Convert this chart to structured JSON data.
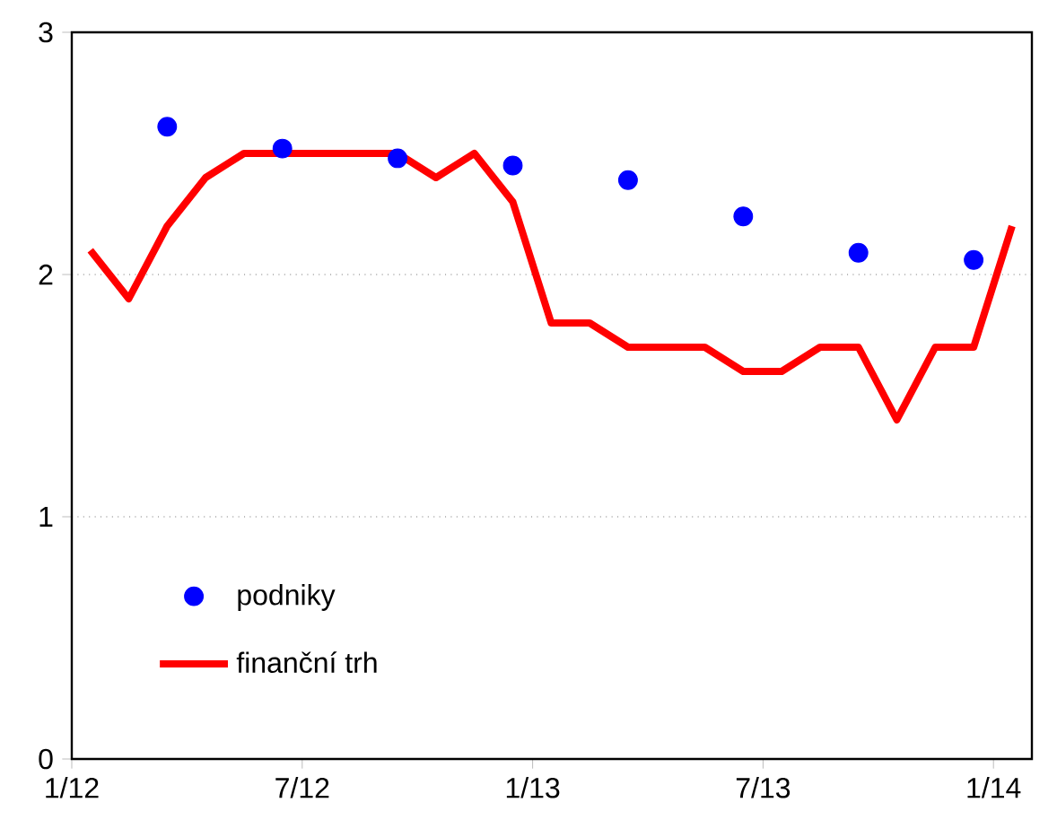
{
  "chart_data": {
    "type": "line",
    "xlim": [
      "2012-01",
      "2014-02"
    ],
    "ylim": [
      0,
      3
    ],
    "xticks": [
      {
        "value": "2012-01",
        "label": "1/12"
      },
      {
        "value": "2012-07",
        "label": "7/12"
      },
      {
        "value": "2013-01",
        "label": "1/13"
      },
      {
        "value": "2013-07",
        "label": "7/13"
      },
      {
        "value": "2014-01",
        "label": "1/14"
      }
    ],
    "yticks": [
      0,
      1,
      2,
      3
    ],
    "grid": "y",
    "legend": "bottom left",
    "series": [
      {
        "name": "podniky",
        "type": "scatter",
        "marker": "circle",
        "color": "#0000ff",
        "x": [
          "2012-03-16",
          "2012-06-16",
          "2012-09-16",
          "2012-12-16",
          "2013-03-16",
          "2013-06-16",
          "2013-09-16",
          "2013-12-16"
        ],
        "values": [
          2.61,
          2.52,
          2.48,
          2.45,
          2.39,
          2.24,
          2.09,
          2.06
        ]
      },
      {
        "name": "finanční trh",
        "marker": "none",
        "line_style": "solid",
        "color": "#ff0000",
        "x": [
          "2012-01-16",
          "2012-02-16",
          "2012-03-16",
          "2012-04-16",
          "2012-05-16",
          "2012-06-16",
          "2012-07-16",
          "2012-08-16",
          "2012-09-16",
          "2012-10-16",
          "2012-11-16",
          "2012-12-16",
          "2013-01-16",
          "2013-02-16",
          "2013-03-16",
          "2013-04-16",
          "2013-05-16",
          "2013-06-16",
          "2013-07-16",
          "2013-08-16",
          "2013-09-16",
          "2013-10-16",
          "2013-11-16",
          "2013-12-16",
          "2014-01-16"
        ],
        "values": [
          2.1,
          1.9,
          2.2,
          2.4,
          2.5,
          2.5,
          2.5,
          2.5,
          2.5,
          2.4,
          2.5,
          2.3,
          1.8,
          1.8,
          1.7,
          1.7,
          1.7,
          1.6,
          1.6,
          1.7,
          1.7,
          1.4,
          1.7,
          1.7,
          2.2
        ]
      }
    ]
  }
}
